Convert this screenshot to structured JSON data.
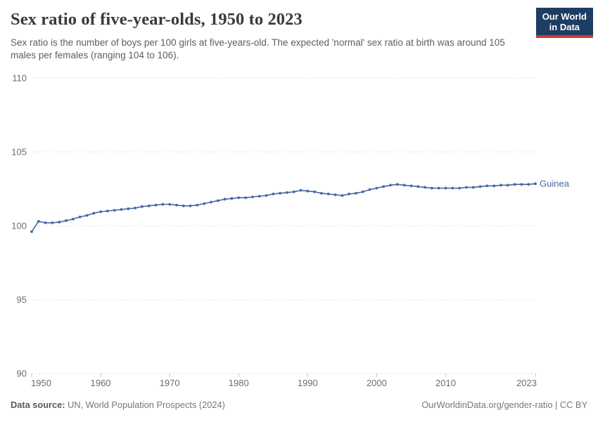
{
  "header": {
    "logo": {
      "line1": "Our World",
      "line2": "in Data",
      "bg_color": "#1d3d63",
      "bar_color": "#d13b33"
    }
  },
  "chart_data": {
    "type": "line",
    "title": "Sex ratio of five-year-olds, 1950 to 2023",
    "subtitle": "Sex ratio is the number of boys per 100 girls at five-years-old. The expected 'normal' sex ratio at birth was around 105 males per females (ranging 104 to 106).",
    "xlabel": "",
    "ylabel": "",
    "ylim": [
      90,
      110
    ],
    "yticks": [
      90,
      95,
      100,
      105,
      110
    ],
    "xticks": [
      1950,
      1960,
      1970,
      1980,
      1990,
      2000,
      2010,
      2023
    ],
    "grid": "horizontal-dashed",
    "legend_position": "end-of-line",
    "line_color": "#4668a3",
    "gridline_color": "#dddddd",
    "tick_color": "#c4c4c4",
    "axis_text_color": "#6d6d6d",
    "series": [
      {
        "name": "Guinea",
        "color": "#4668a3",
        "x": [
          1950,
          1951,
          1952,
          1953,
          1954,
          1955,
          1956,
          1957,
          1958,
          1959,
          1960,
          1961,
          1962,
          1963,
          1964,
          1965,
          1966,
          1967,
          1968,
          1969,
          1970,
          1971,
          1972,
          1973,
          1974,
          1975,
          1976,
          1977,
          1978,
          1979,
          1980,
          1981,
          1982,
          1983,
          1984,
          1985,
          1986,
          1987,
          1988,
          1989,
          1990,
          1991,
          1992,
          1993,
          1994,
          1995,
          1996,
          1997,
          1998,
          1999,
          2000,
          2001,
          2002,
          2003,
          2004,
          2005,
          2006,
          2007,
          2008,
          2009,
          2010,
          2011,
          2012,
          2013,
          2014,
          2015,
          2016,
          2017,
          2018,
          2019,
          2020,
          2021,
          2022,
          2023
        ],
        "values": [
          99.6,
          100.3,
          100.2,
          100.2,
          100.25,
          100.35,
          100.45,
          100.6,
          100.7,
          100.85,
          100.95,
          101.0,
          101.05,
          101.1,
          101.15,
          101.2,
          101.3,
          101.35,
          101.4,
          101.45,
          101.45,
          101.4,
          101.35,
          101.35,
          101.4,
          101.5,
          101.6,
          101.7,
          101.8,
          101.85,
          101.9,
          101.9,
          101.95,
          102.0,
          102.05,
          102.15,
          102.2,
          102.25,
          102.3,
          102.4,
          102.35,
          102.3,
          102.2,
          102.15,
          102.1,
          102.05,
          102.15,
          102.2,
          102.3,
          102.45,
          102.55,
          102.65,
          102.75,
          102.8,
          102.75,
          102.7,
          102.65,
          102.6,
          102.55,
          102.55,
          102.55,
          102.55,
          102.55,
          102.6,
          102.6,
          102.65,
          102.7,
          102.7,
          102.75,
          102.75,
          102.8,
          102.8,
          102.8,
          102.85
        ]
      }
    ]
  },
  "footer": {
    "source_label": "Data source:",
    "source_text": " UN, World Population Prospects (2024)",
    "credit": "OurWorldinData.org/gender-ratio | CC BY"
  }
}
